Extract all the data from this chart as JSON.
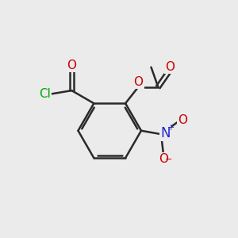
{
  "bg_color": "#ebebeb",
  "bond_color": "#2a2a2a",
  "bond_width": 1.8,
  "colors": {
    "O": "#cc0000",
    "Cl": "#00aa00",
    "N": "#2222cc",
    "C": "#2a2a2a"
  },
  "font_size": 11
}
